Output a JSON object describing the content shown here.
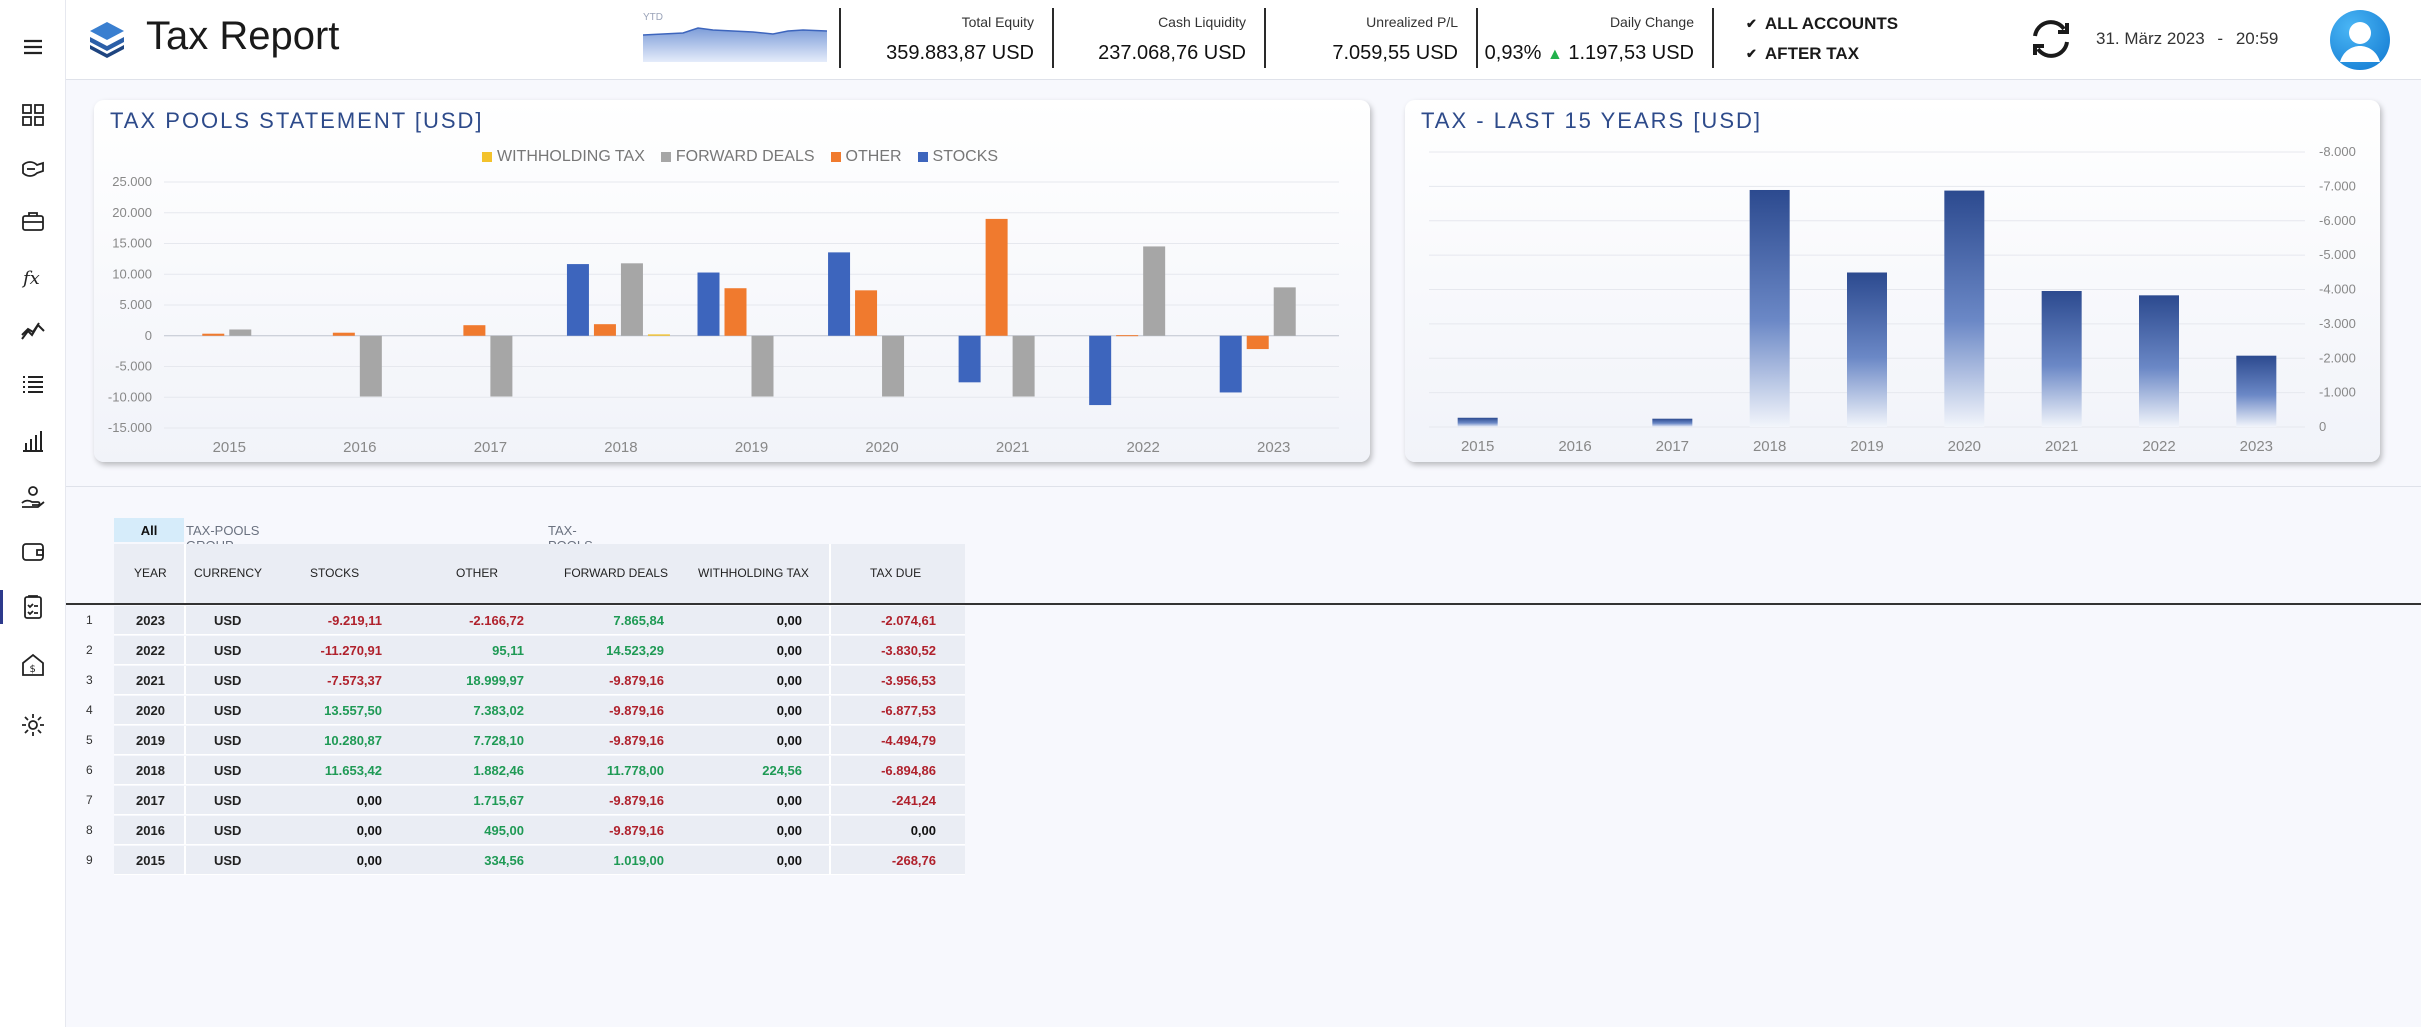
{
  "app": {
    "title": "Tax Report"
  },
  "header": {
    "ytd_label": "YTD",
    "kpis": [
      {
        "label": "Total Equity",
        "value": "359.883,87 USD"
      },
      {
        "label": "Cash Liquidity",
        "value": "237.068,76 USD"
      },
      {
        "label": "Unrealized P/L",
        "value": "7.059,55 USD"
      },
      {
        "label": "Daily Change",
        "value_pct": "0,93%",
        "value": "1.197,53 USD"
      }
    ],
    "accounts": "ALL ACCOUNTS",
    "tax_mode": "AFTER TAX",
    "date": "31. März 2023",
    "sep": "-",
    "time": "20:59"
  },
  "sidebar": {
    "items": [
      "menu-icon",
      "dashboard-icon",
      "portfolio-icon",
      "briefcase-icon",
      "fx-icon",
      "trend-icon",
      "list-icon",
      "bar-chart-icon",
      "dividend-hand-icon",
      "wallet-icon",
      "tax-report-icon",
      "safe-icon",
      "settings-icon"
    ]
  },
  "colors": {
    "stocks": "#3d65bd",
    "other": "#f07a2e",
    "forward": "#a6a6a6",
    "withholding": "#f3c22c",
    "neg": "#b0212c",
    "pos": "#1f9a55",
    "title": "#2d4a8a"
  },
  "chart_data": [
    {
      "type": "bar",
      "title": "TAX POOLS STATEMENT [USD]",
      "categories": [
        "2015",
        "2016",
        "2017",
        "2018",
        "2019",
        "2020",
        "2021",
        "2022",
        "2023"
      ],
      "series": [
        {
          "name": "STOCKS",
          "values": [
            0,
            0,
            0,
            11653.42,
            10280.87,
            13557.5,
            -7573.37,
            -11270.91,
            -9219.11
          ]
        },
        {
          "name": "OTHER",
          "values": [
            334.56,
            495.0,
            1715.67,
            1882.46,
            7728.1,
            7383.02,
            18999.97,
            95.11,
            -2166.72
          ]
        },
        {
          "name": "FORWARD DEALS",
          "values": [
            1019.0,
            -9879.16,
            -9879.16,
            11778.0,
            -9879.16,
            -9879.16,
            -9879.16,
            14523.29,
            7865.84
          ]
        },
        {
          "name": "WITHHOLDING TAX",
          "values": [
            0,
            0,
            0,
            224.56,
            0,
            0,
            0,
            0,
            0
          ]
        }
      ],
      "ylim": [
        -15000,
        25000
      ],
      "yticks": [
        "25.000",
        "20.000",
        "15.000",
        "10.000",
        "5.000",
        "0",
        "-5.000",
        "-10.000",
        "-15.000"
      ],
      "legend": [
        "WITHHOLDING TAX",
        "FORWARD DEALS",
        "OTHER",
        "STOCKS"
      ]
    },
    {
      "type": "bar",
      "title": "TAX - LAST 15 YEARS [USD]",
      "categories": [
        "2015",
        "2016",
        "2017",
        "2018",
        "2019",
        "2020",
        "2021",
        "2022",
        "2023"
      ],
      "values": [
        -268.76,
        0,
        -241.24,
        -6894.86,
        -4494.79,
        -6877.53,
        -3956.53,
        -3830.52,
        -2074.61
      ],
      "ylim": [
        0,
        -8000
      ],
      "yticks": [
        "-8.000",
        "-7.000",
        "-6.000",
        "-5.000",
        "-4.000",
        "-3.000",
        "-2.000",
        "-1.000",
        "0"
      ]
    }
  ],
  "table": {
    "all_label": "All",
    "group_label": "TAX-POOLS GROUP SELECTION",
    "pools_label": "TAX-POOLS",
    "columns": [
      "YEAR",
      "CURRENCY",
      "STOCKS",
      "OTHER",
      "FORWARD DEALS",
      "WITHHOLDING TAX",
      "TAX DUE"
    ],
    "rows": [
      [
        "1",
        "2023",
        "USD",
        "-9.219,11",
        "-2.166,72",
        "7.865,84",
        "0,00",
        "-2.074,61"
      ],
      [
        "2",
        "2022",
        "USD",
        "-11.270,91",
        "95,11",
        "14.523,29",
        "0,00",
        "-3.830,52"
      ],
      [
        "3",
        "2021",
        "USD",
        "-7.573,37",
        "18.999,97",
        "-9.879,16",
        "0,00",
        "-3.956,53"
      ],
      [
        "4",
        "2020",
        "USD",
        "13.557,50",
        "7.383,02",
        "-9.879,16",
        "0,00",
        "-6.877,53"
      ],
      [
        "5",
        "2019",
        "USD",
        "10.280,87",
        "7.728,10",
        "-9.879,16",
        "0,00",
        "-4.494,79"
      ],
      [
        "6",
        "2018",
        "USD",
        "11.653,42",
        "1.882,46",
        "11.778,00",
        "224,56",
        "-6.894,86"
      ],
      [
        "7",
        "2017",
        "USD",
        "0,00",
        "1.715,67",
        "-9.879,16",
        "0,00",
        "-241,24"
      ],
      [
        "8",
        "2016",
        "USD",
        "0,00",
        "495,00",
        "-9.879,16",
        "0,00",
        "0,00"
      ],
      [
        "9",
        "2015",
        "USD",
        "0,00",
        "334,56",
        "1.019,00",
        "0,00",
        "-268,76"
      ]
    ]
  }
}
